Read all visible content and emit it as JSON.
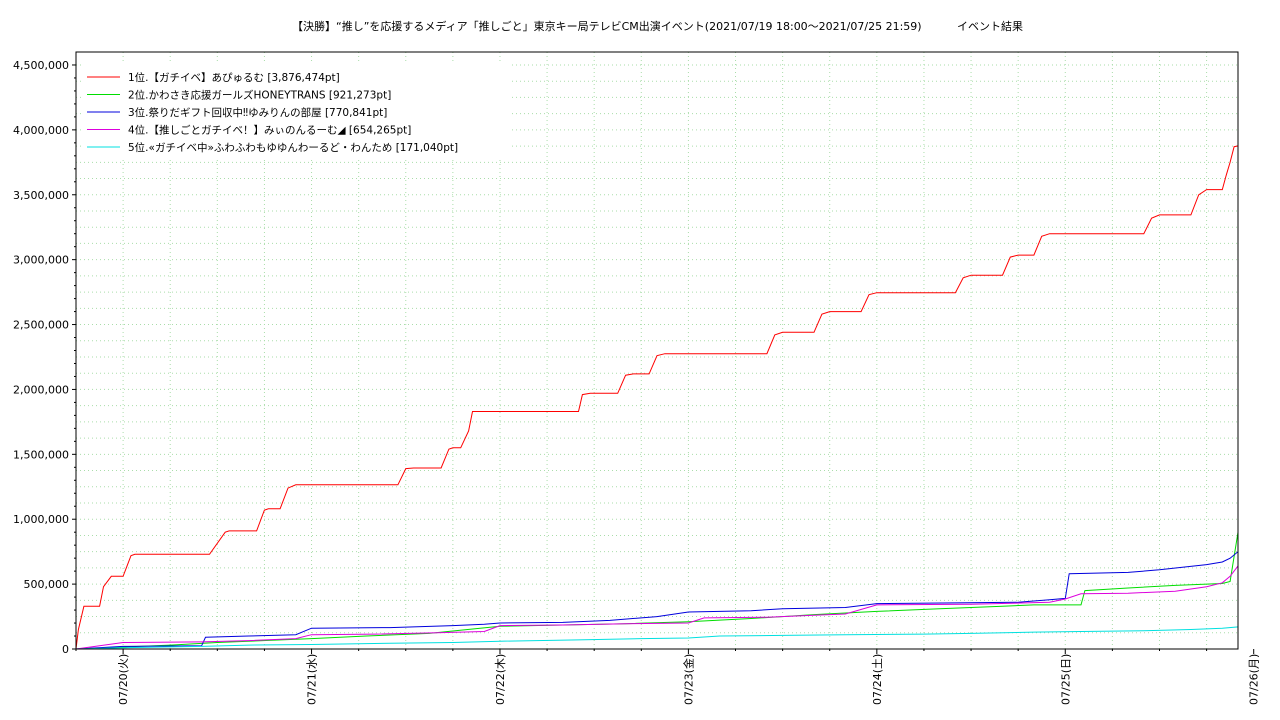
{
  "chart_data": {
    "type": "line",
    "title": "【決勝】“推し”を応援するメディア「推しごと」東京キー局テレビCM出演イベント(2021/07/19 18:00〜2021/07/25 21:59)",
    "subtitle": "イベント結果",
    "ylim": [
      0,
      4600000
    ],
    "y_ticks": [
      0,
      500000,
      1000000,
      1500000,
      2000000,
      2500000,
      3000000,
      3500000,
      4000000,
      4500000
    ],
    "y_tick_labels": [
      "0",
      "500,000",
      "1,000,000",
      "1,500,000",
      "2,000,000",
      "2,500,000",
      "3,000,000",
      "3,500,000",
      "4,000,000",
      "4,500,000"
    ],
    "xlim": [
      18,
      166
    ],
    "x_unit": "hours since 2021/07/19 00:00",
    "x_ticks": [
      24,
      48,
      72,
      96,
      120,
      144,
      168
    ],
    "x_tick_labels": [
      "07/20(火)",
      "07/21(水)",
      "07/22(木)",
      "07/23(金)",
      "07/24(土)",
      "07/25(日)",
      "07/26(月)"
    ],
    "grid": true,
    "legend_position": "top-left",
    "series": [
      {
        "name": "1位.【ガチイベ】あぴゅるむ [3,876,474pt]",
        "color": "#ff0000",
        "points": [
          [
            18,
            0
          ],
          [
            18.3,
            150000
          ],
          [
            19,
            330000
          ],
          [
            21,
            330000
          ],
          [
            21.5,
            480000
          ],
          [
            22.5,
            560000
          ],
          [
            24,
            560000
          ],
          [
            25,
            720000
          ],
          [
            25.5,
            730000
          ],
          [
            35,
            730000
          ],
          [
            37,
            900000
          ],
          [
            37.5,
            910000
          ],
          [
            41,
            910000
          ],
          [
            42,
            1070000
          ],
          [
            42.5,
            1080000
          ],
          [
            44,
            1080000
          ],
          [
            45,
            1240000
          ],
          [
            46,
            1265000
          ],
          [
            59,
            1265000
          ],
          [
            60,
            1390000
          ],
          [
            61,
            1395000
          ],
          [
            64.5,
            1395000
          ],
          [
            65.5,
            1540000
          ],
          [
            66,
            1550000
          ],
          [
            67,
            1550000
          ],
          [
            68,
            1680000
          ],
          [
            68.5,
            1830000
          ],
          [
            82,
            1830000
          ],
          [
            82.5,
            1960000
          ],
          [
            83.5,
            1970000
          ],
          [
            87,
            1970000
          ],
          [
            88,
            2110000
          ],
          [
            89,
            2120000
          ],
          [
            91,
            2120000
          ],
          [
            92,
            2260000
          ],
          [
            93,
            2275000
          ],
          [
            106,
            2275000
          ],
          [
            107,
            2420000
          ],
          [
            108,
            2440000
          ],
          [
            112,
            2440000
          ],
          [
            113,
            2580000
          ],
          [
            114,
            2600000
          ],
          [
            118,
            2600000
          ],
          [
            119,
            2730000
          ],
          [
            120,
            2745000
          ],
          [
            130,
            2745000
          ],
          [
            131,
            2860000
          ],
          [
            132,
            2880000
          ],
          [
            136,
            2880000
          ],
          [
            137,
            3020000
          ],
          [
            138,
            3035000
          ],
          [
            140,
            3035000
          ],
          [
            141,
            3180000
          ],
          [
            142,
            3200000
          ],
          [
            154,
            3200000
          ],
          [
            155,
            3320000
          ],
          [
            156,
            3345000
          ],
          [
            160,
            3345000
          ],
          [
            161,
            3500000
          ],
          [
            162,
            3540000
          ],
          [
            164,
            3540000
          ],
          [
            164.5,
            3650000
          ],
          [
            165,
            3750000
          ],
          [
            165.5,
            3870000
          ],
          [
            168,
            3876474
          ]
        ]
      },
      {
        "name": "2位.かわさき応援ガールズHONEYTRANS [921,273pt]",
        "color": "#00dd00",
        "points": [
          [
            18,
            0
          ],
          [
            24,
            15000
          ],
          [
            30,
            30000
          ],
          [
            36,
            50000
          ],
          [
            40,
            60000
          ],
          [
            48,
            80000
          ],
          [
            55,
            100000
          ],
          [
            63,
            120000
          ],
          [
            72,
            175000
          ],
          [
            80,
            185000
          ],
          [
            88,
            195000
          ],
          [
            96,
            210000
          ],
          [
            104,
            235000
          ],
          [
            112,
            265000
          ],
          [
            120,
            290000
          ],
          [
            128,
            310000
          ],
          [
            136,
            330000
          ],
          [
            140,
            340000
          ],
          [
            146,
            340000
          ],
          [
            146.5,
            450000
          ],
          [
            152,
            470000
          ],
          [
            158,
            490000
          ],
          [
            164,
            505000
          ],
          [
            165,
            520000
          ],
          [
            166,
            900000
          ],
          [
            166.5,
            921273
          ],
          [
            168,
            921273
          ]
        ]
      },
      {
        "name": "3位.祭りだギフト回収中‼ゆみりんの部屋 [770,841pt]",
        "color": "#0000dd",
        "points": [
          [
            18,
            0
          ],
          [
            24,
            20000
          ],
          [
            34,
            25000
          ],
          [
            34.5,
            90000
          ],
          [
            40,
            100000
          ],
          [
            46,
            110000
          ],
          [
            48,
            160000
          ],
          [
            58,
            165000
          ],
          [
            66,
            180000
          ],
          [
            70,
            190000
          ],
          [
            72,
            200000
          ],
          [
            80,
            205000
          ],
          [
            86,
            220000
          ],
          [
            92,
            250000
          ],
          [
            96,
            285000
          ],
          [
            104,
            295000
          ],
          [
            108,
            310000
          ],
          [
            116,
            320000
          ],
          [
            120,
            350000
          ],
          [
            130,
            355000
          ],
          [
            138,
            360000
          ],
          [
            142,
            380000
          ],
          [
            144,
            390000
          ],
          [
            144.5,
            580000
          ],
          [
            152,
            590000
          ],
          [
            156,
            610000
          ],
          [
            162,
            650000
          ],
          [
            164,
            670000
          ],
          [
            165,
            700000
          ],
          [
            166,
            750000
          ],
          [
            166.5,
            770841
          ],
          [
            168,
            770841
          ]
        ]
      },
      {
        "name": "4位.【推しごとガチイベ！】みぃのんるーむ◢ [654,265pt]",
        "color": "#dd00dd",
        "points": [
          [
            18,
            0
          ],
          [
            24,
            50000
          ],
          [
            34,
            55000
          ],
          [
            40,
            65000
          ],
          [
            46,
            80000
          ],
          [
            48,
            110000
          ],
          [
            56,
            115000
          ],
          [
            64,
            125000
          ],
          [
            70,
            135000
          ],
          [
            72,
            180000
          ],
          [
            80,
            185000
          ],
          [
            88,
            195000
          ],
          [
            96,
            200000
          ],
          [
            98,
            240000
          ],
          [
            106,
            245000
          ],
          [
            112,
            260000
          ],
          [
            116,
            270000
          ],
          [
            120,
            340000
          ],
          [
            132,
            345000
          ],
          [
            142,
            360000
          ],
          [
            144,
            385000
          ],
          [
            146,
            425000
          ],
          [
            152,
            430000
          ],
          [
            158,
            445000
          ],
          [
            162,
            480000
          ],
          [
            164,
            510000
          ],
          [
            165,
            560000
          ],
          [
            166,
            640000
          ],
          [
            166.5,
            654265
          ],
          [
            168,
            654265
          ]
        ]
      },
      {
        "name": "5位.«ガチイベ中»ふわふわもゆゆんわーるど・わんため [171,040pt]",
        "color": "#00e0e0",
        "points": [
          [
            18,
            0
          ],
          [
            24,
            10000
          ],
          [
            34,
            20000
          ],
          [
            40,
            30000
          ],
          [
            48,
            35000
          ],
          [
            58,
            45000
          ],
          [
            66,
            50000
          ],
          [
            72,
            60000
          ],
          [
            82,
            70000
          ],
          [
            90,
            80000
          ],
          [
            96,
            85000
          ],
          [
            100,
            100000
          ],
          [
            108,
            105000
          ],
          [
            116,
            110000
          ],
          [
            126,
            115000
          ],
          [
            132,
            120000
          ],
          [
            140,
            130000
          ],
          [
            146,
            135000
          ],
          [
            154,
            140000
          ],
          [
            160,
            150000
          ],
          [
            164,
            160000
          ],
          [
            166,
            170000
          ],
          [
            168,
            171040
          ]
        ]
      }
    ]
  }
}
